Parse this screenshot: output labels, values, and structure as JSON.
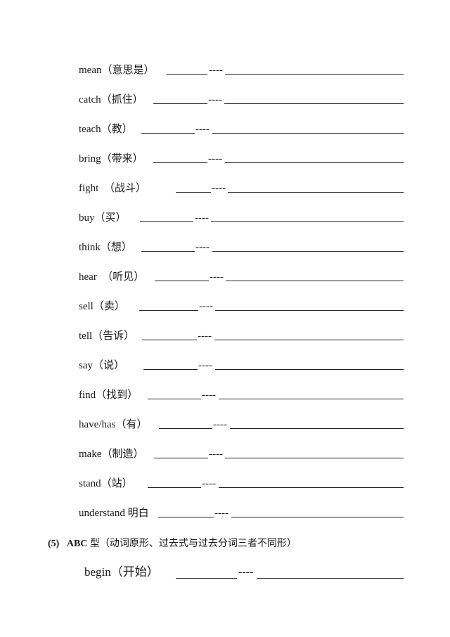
{
  "rows": [
    {
      "label": "mean（意思是）",
      "dashes": "----"
    },
    {
      "label": "catch（抓住）",
      "dashes": "----"
    },
    {
      "label": "teach（教）",
      "dashes": "----"
    },
    {
      "label": "bring（带来）",
      "dashes": "----"
    },
    {
      "label": "fight  （战斗）",
      "dashes": "----"
    },
    {
      "label": "buy（买）",
      "dashes": "----"
    },
    {
      "label": "think（想）",
      "dashes": "----"
    },
    {
      "label": "hear  （听见）",
      "dashes": "----"
    },
    {
      "label": "sell（卖）",
      "dashes": "----"
    },
    {
      "label": "tell（告诉）",
      "dashes": "----"
    },
    {
      "label": "say（说）",
      "dashes": "----"
    },
    {
      "label": "find（找到）",
      "dashes": "----"
    },
    {
      "label": "have/has（有）",
      "dashes": "----"
    },
    {
      "label": "make（制造）",
      "dashes": "----"
    },
    {
      "label": "stand（站）",
      "dashes": "----"
    },
    {
      "label": "understand 明白",
      "dashes": "----"
    }
  ],
  "section": {
    "number": "(5)",
    "type": "ABC",
    "title": " 型（动词原形、过去式与过去分词三者不同形）"
  },
  "section_rows": [
    {
      "label": "begin（开始）",
      "dashes": "----"
    }
  ]
}
